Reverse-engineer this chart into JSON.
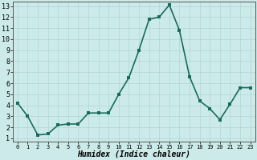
{
  "x": [
    0,
    1,
    2,
    3,
    4,
    5,
    6,
    7,
    8,
    9,
    10,
    11,
    12,
    13,
    14,
    15,
    16,
    17,
    18,
    19,
    20,
    21,
    22,
    23
  ],
  "y": [
    4.2,
    3.0,
    1.3,
    1.4,
    2.2,
    2.3,
    2.3,
    3.3,
    3.3,
    3.3,
    5.0,
    6.5,
    9.0,
    11.8,
    12.0,
    13.1,
    10.8,
    6.6,
    4.4,
    3.7,
    2.7,
    4.1,
    5.6,
    5.6
  ],
  "xlabel": "Humidex (Indice chaleur)",
  "line_color": "#1a6b5a",
  "bg_color": "#cceaea",
  "grid_color": "#b0d5d5",
  "ylim_min": 0.7,
  "ylim_max": 13.4,
  "xlim_min": -0.5,
  "xlim_max": 23.5,
  "yticks": [
    1,
    2,
    3,
    4,
    5,
    6,
    7,
    8,
    9,
    10,
    11,
    12,
    13
  ],
  "xticks": [
    0,
    1,
    2,
    3,
    4,
    5,
    6,
    7,
    8,
    9,
    10,
    11,
    12,
    13,
    14,
    15,
    16,
    17,
    18,
    19,
    20,
    21,
    22,
    23
  ],
  "marker_size": 2.5,
  "line_width": 1.2,
  "xlabel_fontsize": 7,
  "ytick_fontsize": 6,
  "xtick_fontsize": 5
}
